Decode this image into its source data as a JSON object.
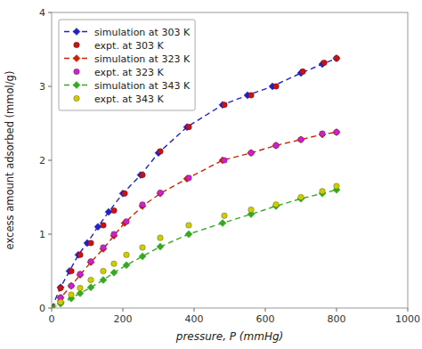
{
  "chart_data": {
    "type": "line",
    "title": "",
    "xlabel": "pressure, P (mmHg)",
    "ylabel": "excess amount adsorbed (mmol/g)",
    "xlim": [
      0,
      1000
    ],
    "ylim": [
      0,
      4
    ],
    "xticks": [
      0,
      200,
      400,
      600,
      800,
      1000
    ],
    "yticks": [
      0,
      1,
      2,
      3,
      4
    ],
    "grid": false,
    "legend": "upper left",
    "series": [
      {
        "name": "simulation at 303 K",
        "type": "line",
        "color": "#2222cc",
        "marker": "diamond",
        "line_style": "dashed",
        "x": [
          0,
          25,
          50,
          75,
          100,
          130,
          160,
          200,
          250,
          300,
          380,
          480,
          550,
          620,
          700,
          760,
          800
        ],
        "values": [
          0,
          0.28,
          0.5,
          0.72,
          0.88,
          1.1,
          1.3,
          1.55,
          1.8,
          2.1,
          2.45,
          2.75,
          2.88,
          3.0,
          3.18,
          3.3,
          3.38
        ]
      },
      {
        "name": "expt. at 303 K",
        "type": "scatter",
        "color": "#cc1111",
        "marker": "circle",
        "x": [
          25,
          55,
          80,
          110,
          145,
          175,
          205,
          255,
          305,
          385,
          485,
          560,
          630,
          705,
          765,
          800
        ],
        "values": [
          0.27,
          0.5,
          0.72,
          0.88,
          1.12,
          1.32,
          1.55,
          1.8,
          2.12,
          2.45,
          2.75,
          2.88,
          3.0,
          3.2,
          3.32,
          3.38
        ]
      },
      {
        "name": "simulation at 323 K",
        "type": "line",
        "color": "#cc2200",
        "marker": "diamond",
        "line_style": "dashed",
        "x": [
          0,
          25,
          55,
          80,
          110,
          145,
          175,
          205,
          255,
          305,
          380,
          480,
          560,
          630,
          700,
          760,
          800
        ],
        "values": [
          0,
          0.14,
          0.3,
          0.45,
          0.62,
          0.8,
          0.98,
          1.15,
          1.38,
          1.55,
          1.75,
          2.0,
          2.1,
          2.2,
          2.28,
          2.35,
          2.38
        ]
      },
      {
        "name": "expt. at 323 K",
        "type": "scatter",
        "color": "#cc22cc",
        "marker": "circle",
        "x": [
          25,
          55,
          80,
          110,
          145,
          175,
          210,
          255,
          305,
          385,
          485,
          560,
          630,
          700,
          760,
          800
        ],
        "values": [
          0.14,
          0.3,
          0.46,
          0.63,
          0.82,
          1.0,
          1.17,
          1.4,
          1.56,
          1.76,
          2.0,
          2.1,
          2.2,
          2.28,
          2.36,
          2.38
        ]
      },
      {
        "name": "simulation at 343 K",
        "type": "line",
        "color": "#33aa22",
        "marker": "diamond",
        "line_style": "dashed",
        "x": [
          0,
          25,
          55,
          80,
          110,
          145,
          175,
          210,
          255,
          305,
          385,
          480,
          560,
          630,
          700,
          760,
          800
        ],
        "values": [
          0,
          0.06,
          0.13,
          0.2,
          0.28,
          0.38,
          0.48,
          0.58,
          0.7,
          0.83,
          1.0,
          1.15,
          1.27,
          1.38,
          1.48,
          1.55,
          1.6
        ]
      },
      {
        "name": "expt. at 343 K",
        "type": "scatter",
        "color": "#cccc00",
        "marker": "circle",
        "x": [
          25,
          55,
          80,
          110,
          145,
          175,
          210,
          255,
          305,
          385,
          485,
          560,
          630,
          700,
          760,
          800
        ],
        "values": [
          0.08,
          0.18,
          0.27,
          0.38,
          0.5,
          0.6,
          0.72,
          0.82,
          0.95,
          1.12,
          1.25,
          1.33,
          1.4,
          1.5,
          1.58,
          1.65
        ]
      }
    ]
  }
}
